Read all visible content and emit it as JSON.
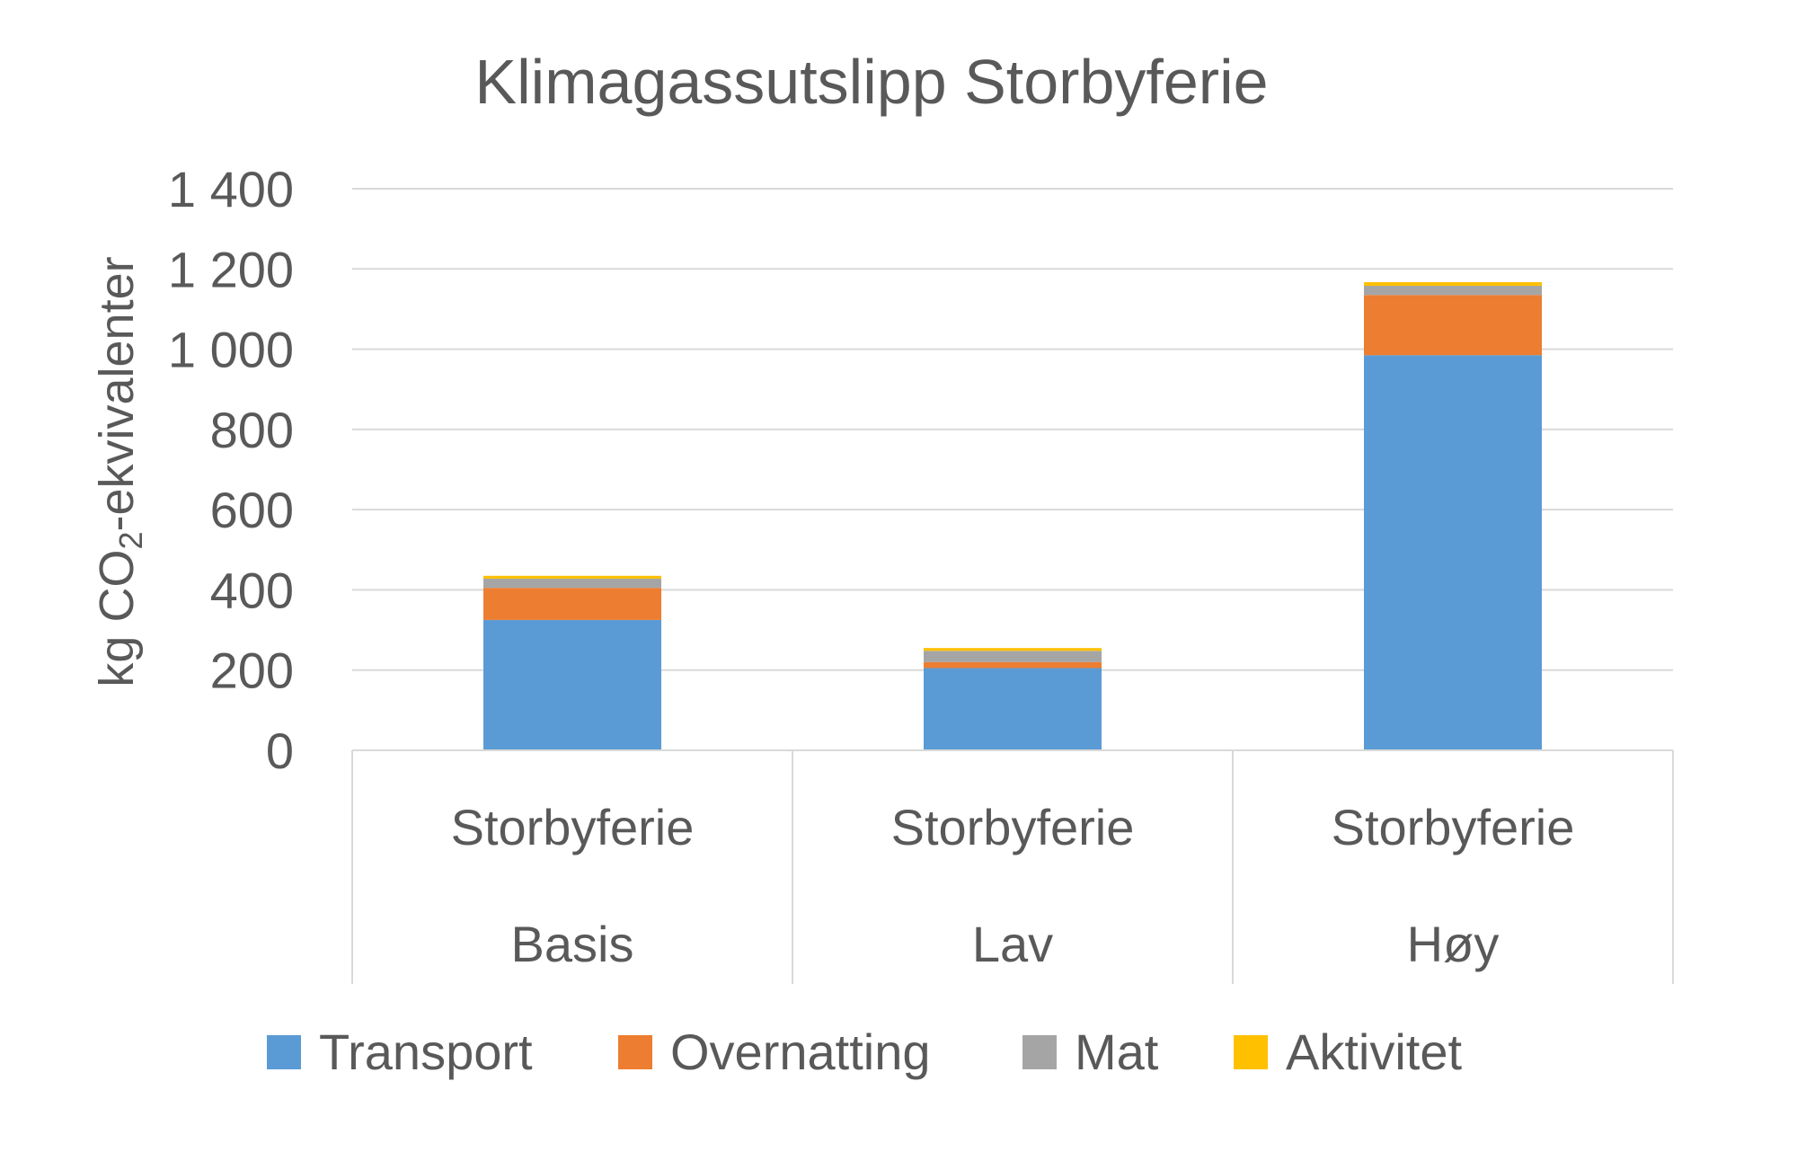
{
  "chart_data": {
    "type": "bar",
    "stacked": true,
    "title": "Klimagassutslipp Storbyferie",
    "ylabel": "kg CO2-ekvivalenter",
    "ylabel_parts": {
      "pre": "kg CO",
      "sub": "2",
      "post": "-ekvivalenter"
    },
    "ylim": [
      0,
      1400
    ],
    "yticks": [
      0,
      200,
      400,
      600,
      800,
      1000,
      1200,
      1400
    ],
    "ytick_labels": [
      "0",
      "200",
      "400",
      "600",
      "800",
      "1 000",
      "1 200",
      "1 400"
    ],
    "categories": [
      {
        "top": "Storbyferie",
        "bottom": "Basis"
      },
      {
        "top": "Storbyferie",
        "bottom": "Lav"
      },
      {
        "top": "Storbyferie",
        "bottom": "Høy"
      }
    ],
    "series": [
      {
        "name": "Transport",
        "color": "#5b9bd5",
        "values": [
          325,
          205,
          985
        ]
      },
      {
        "name": "Overnatting",
        "color": "#ed7d31",
        "values": [
          80,
          15,
          150
        ]
      },
      {
        "name": "Mat",
        "color": "#a5a5a5",
        "values": [
          23,
          28,
          23
        ]
      },
      {
        "name": "Aktivitet",
        "color": "#ffc000",
        "values": [
          7,
          7,
          9
        ]
      }
    ],
    "grid": true,
    "legend_position": "bottom"
  }
}
